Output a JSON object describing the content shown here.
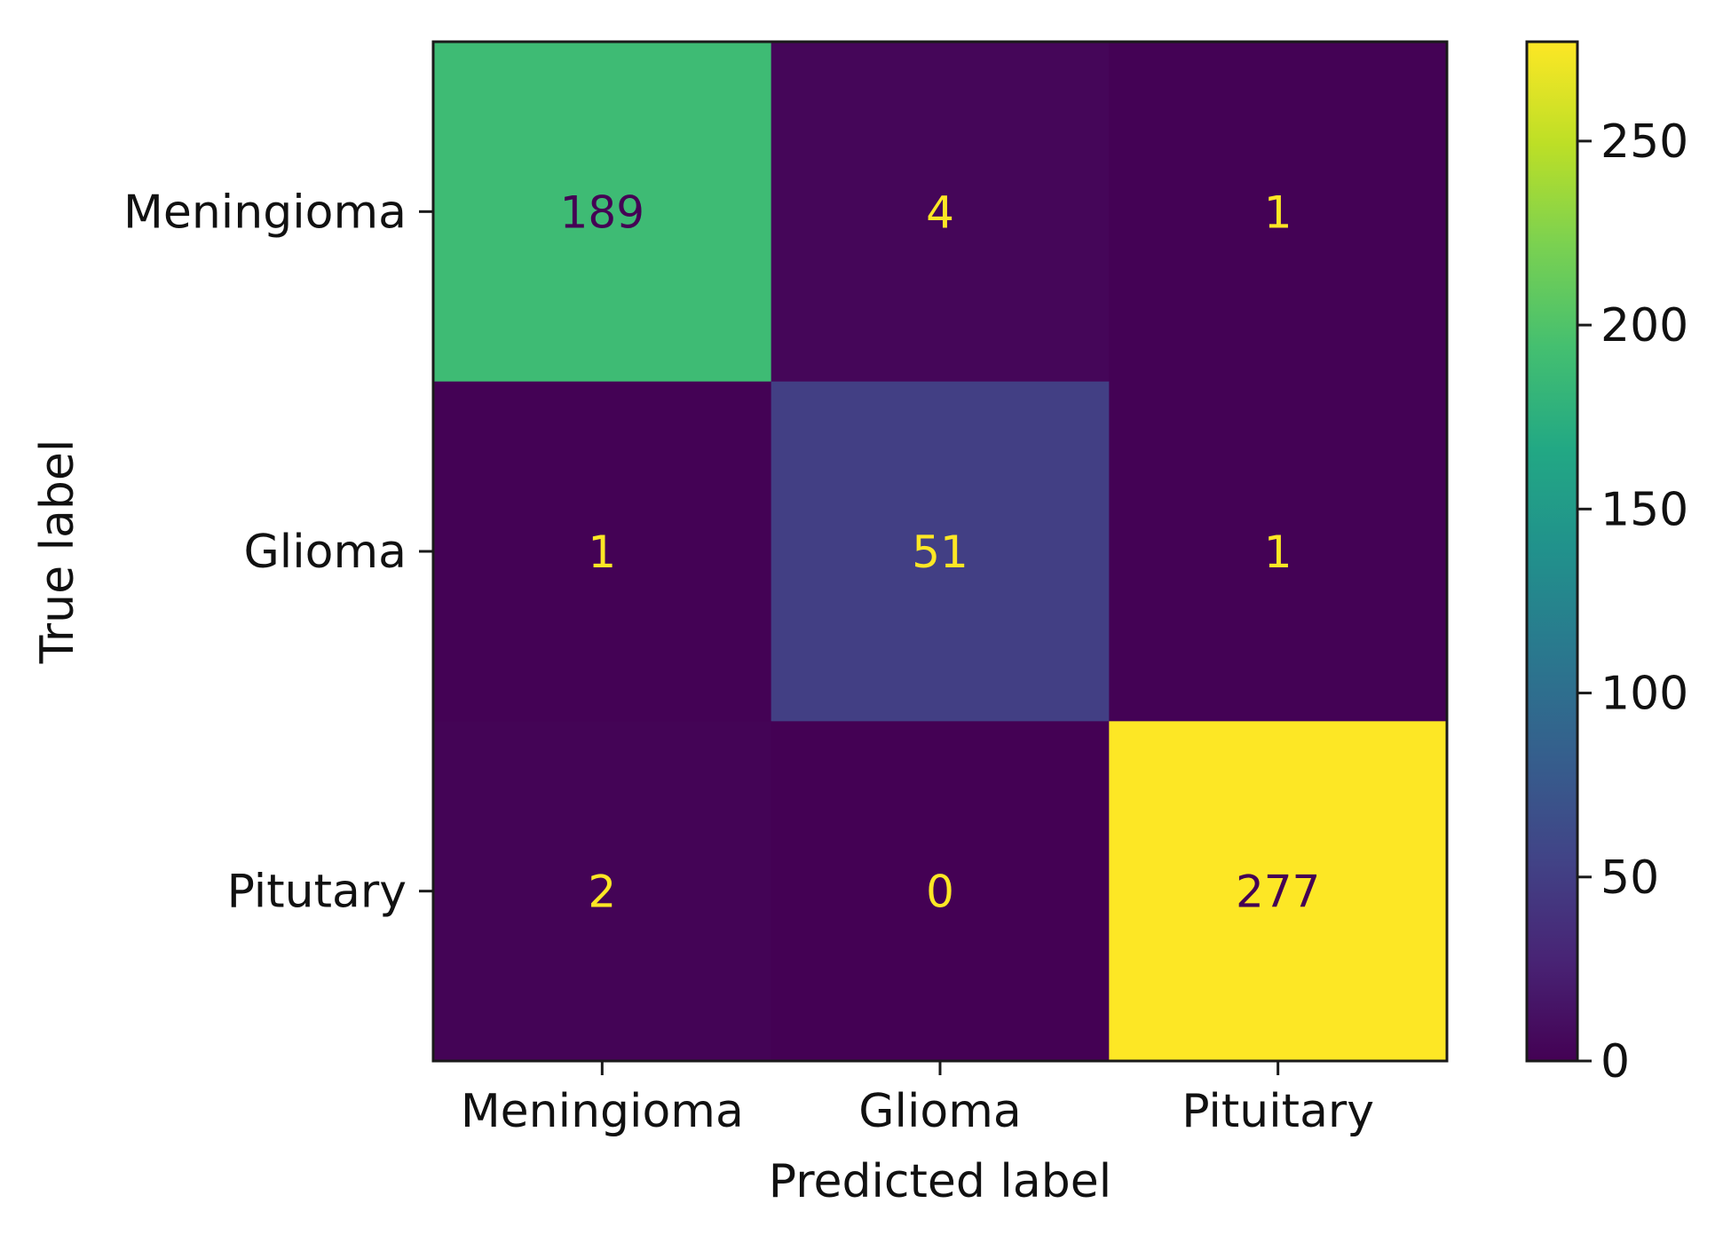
{
  "chart_data": {
    "type": "heatmap",
    "title": "",
    "xlabel": "Predicted label",
    "ylabel": "True label",
    "x_categories": [
      "Meningioma",
      "Glioma",
      "Pituitary"
    ],
    "y_categories": [
      "Meningioma",
      "Glioma",
      "Pitutary"
    ],
    "values": [
      [
        189,
        4,
        1
      ],
      [
        1,
        51,
        1
      ],
      [
        2,
        0,
        277
      ]
    ],
    "colormap": "viridis",
    "colorbar": {
      "min": 0,
      "max": 277,
      "ticks": [
        0,
        50,
        100,
        150,
        200,
        250
      ]
    },
    "grid": false,
    "text_colors": {
      "on_light": "#440154",
      "on_dark": "#fde725"
    }
  }
}
